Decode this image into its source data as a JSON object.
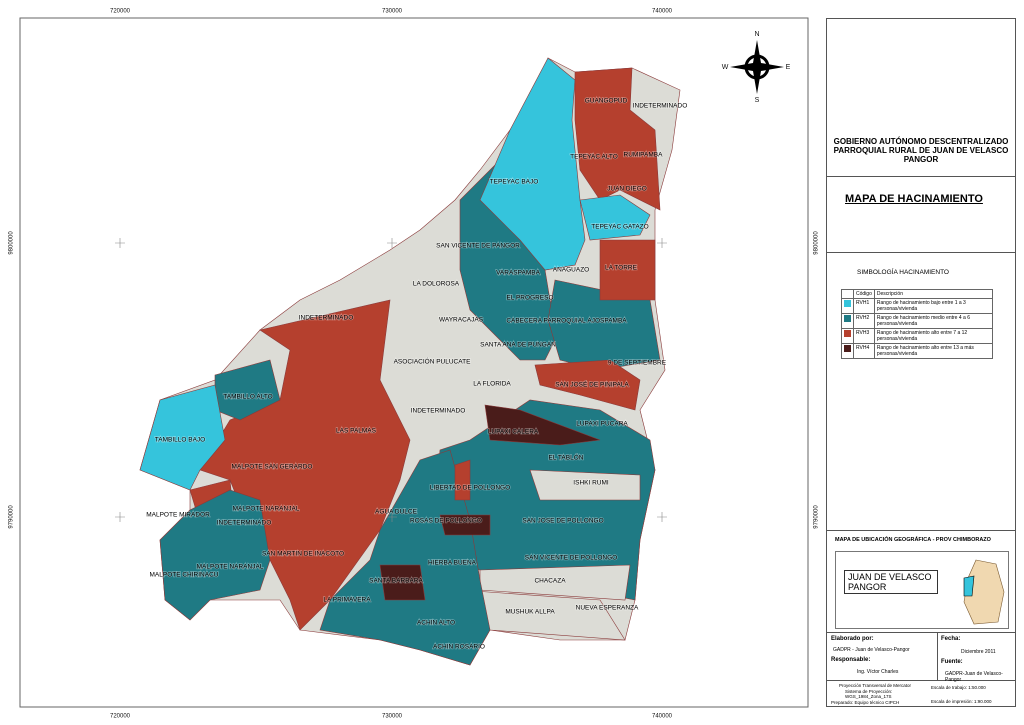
{
  "map": {
    "coords": {
      "x_labels": [
        "720000",
        "730000",
        "740000"
      ],
      "y_labels": [
        "9800000",
        "9790000"
      ]
    },
    "compass": {
      "n": "N",
      "s": "S",
      "e": "E",
      "w": "W"
    },
    "places": [
      "GUANGOPUD",
      "INDETERMINADO",
      "RUMIPAMBA",
      "TEPEYAC ALTO",
      "JUAN DIEGO",
      "TEPEYAC BAJO",
      "TEPEYAC GATAZO",
      "SAN VICENTE DE PANGOR",
      "ANAGUAZO",
      "LA TORRE",
      "VARASPAMBA",
      "LA DOLOROSA",
      "EL PROGRESO",
      "INDETERMINADO",
      "WAYRACAJAS",
      "CABECERA PARROQUIAL",
      "AJOSPAMBA",
      "SANTA ANA DE PUNGAN",
      "ASOCIACIÓN PULUCATE",
      "9 DE SEPTIEMBRE",
      "LA FLORIDA",
      "SAN JOSÉ DE PINIPALA",
      "TAMBILLO ALTO",
      "INDETERMINADO",
      "LUPAXI CALERA",
      "LUPAXI PUCARA",
      "LAS PALMAS",
      "TAMBILLO BAJO",
      "EL TABLÓN",
      "MALPOTE SAN GERARDO",
      "ISHKI RUMI",
      "LIBERTAD DE POLLONGO",
      "MALPOTE NARANJAL",
      "MALPOTE MIRADOR",
      "INDETERMINADO",
      "AGUA DULCE",
      "ROSAS DE POLLONGO",
      "SAN JOSE DE POLLONGO",
      "SAN MARTIN DE INACOTO",
      "SAN VICENTE DE POLLONGO",
      "MALPOTE NARANJAL",
      "MALPOTE CHIRINACU",
      "HIERBA BUENA",
      "CHACAZA",
      "SANTA BARBARA",
      "LA PRIMAVERA",
      "MUSHUK ALLPA",
      "NUEVA ESPERANZA",
      "ACHIN ALTO",
      "ACHIN ROSARIO"
    ]
  },
  "panel": {
    "org": "GOBIERNO AUTÓNOMO DESCENTRALIZADO PARROQUIAL RURAL DE JUAN DE VELASCO PANGOR",
    "title": "MAPA DE HACINAMIENTO",
    "legend": {
      "title": "SIMBOLOGÍA HACINAMIENTO",
      "header": [
        "Código",
        "Descripción"
      ],
      "rows": [
        {
          "code": "RVH1",
          "description": "Rango de hacinamiento bajo entre 1 a 3 personas/vivienda",
          "color": "#35c4dc"
        },
        {
          "code": "RVH2",
          "description": "Rango de hacinamiento medio entre 4 a 6 personas/vivienda",
          "color": "#1f7a84"
        },
        {
          "code": "RVH3",
          "description": "Rango de hacinamiento alto entre 7 a 12 personas/vivienda",
          "color": "#b5402e"
        },
        {
          "code": "RVH4",
          "description": "Rango de hacinamiento alto entre 13 a más personas/vivienda",
          "color": "#4a1c1a"
        }
      ]
    },
    "location": {
      "title": "MAPA DE UBICACIÓN GEOGRÁFICA - PROV CHIMBORAZO",
      "label": "JUAN DE VELASCO PANGOR"
    },
    "credits": {
      "made_by_label": "Elaborado por:",
      "made_by": "GADPR - Juan de Velasco-Pangor",
      "responsible_label": "Responsable:",
      "responsible": "Ing. Víctor Charles",
      "date_label": "Fecha:",
      "date": "Diciembre 2011",
      "source_label": "Fuente:",
      "source": "GADPR-Juan de Velasco-Pangor"
    },
    "footer": {
      "projection": [
        "Proyección Transversal de Mercator",
        "Sistema de Proyección:",
        "WGS_1984_Zona_17S"
      ],
      "prepared": "Preparado: Equipo técnico CIPCH",
      "work_scale": "Escala de trabajo: 1:50.000",
      "print_scale": "Escala de impresión: 1:90.000"
    }
  }
}
